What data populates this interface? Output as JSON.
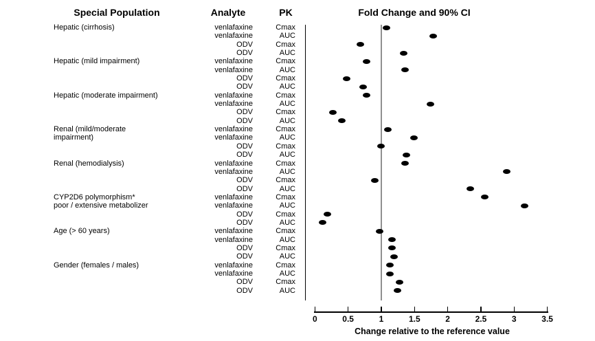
{
  "headers": {
    "special_population": "Special Population",
    "analyte": "Analyte",
    "pk": "PK"
  },
  "chart_data": {
    "type": "scatter",
    "title": "Fold Change and 90% CI",
    "xlabel": "Change relative to the reference value",
    "x_tick_labels": [
      "0",
      "0.5",
      "1",
      "1.5",
      "2",
      "2.5",
      "3",
      "3.5"
    ],
    "x_tick_values": [
      0,
      0.5,
      1,
      1.5,
      2,
      2.5,
      3,
      3.5
    ],
    "xlim": [
      -0.15,
      3.6
    ],
    "reference_line_x": 1,
    "grid": "off",
    "legend": "none",
    "colors": {
      "dot": "#000000",
      "reference_line": "#8f8f8f",
      "axis": "#000000",
      "text": "#000000"
    },
    "rows": [
      {
        "population": "Hepatic (cirrhosis)",
        "analyte": "venlafaxine",
        "pk": "Cmax",
        "fold_change": 1.08
      },
      {
        "population": "",
        "analyte": "venlafaxine",
        "pk": "AUC",
        "fold_change": 1.78
      },
      {
        "population": "",
        "analyte": "ODV",
        "pk": "Cmax",
        "fold_change": 0.68
      },
      {
        "population": "",
        "analyte": "ODV",
        "pk": "AUC",
        "fold_change": 1.34
      },
      {
        "population": "Hepatic (mild impairment)",
        "analyte": "venlafaxine",
        "pk": "Cmax",
        "fold_change": 0.78
      },
      {
        "population": "",
        "analyte": "venlafaxine",
        "pk": "AUC",
        "fold_change": 1.36
      },
      {
        "population": "",
        "analyte": "ODV",
        "pk": "Cmax",
        "fold_change": 0.48
      },
      {
        "population": "",
        "analyte": "ODV",
        "pk": "AUC",
        "fold_change": 0.73
      },
      {
        "population": "Hepatic (moderate impairment)",
        "analyte": "venlafaxine",
        "pk": "Cmax",
        "fold_change": 0.78
      },
      {
        "population": "",
        "analyte": "venlafaxine",
        "pk": "AUC",
        "fold_change": 1.74
      },
      {
        "population": "",
        "analyte": "ODV",
        "pk": "Cmax",
        "fold_change": 0.27
      },
      {
        "population": "",
        "analyte": "ODV",
        "pk": "AUC",
        "fold_change": 0.41
      },
      {
        "population": "Renal (mild/moderate",
        "analyte": "venlafaxine",
        "pk": "Cmax",
        "fold_change": 1.1
      },
      {
        "population": "impairment)",
        "analyte": "venlafaxine",
        "pk": "AUC",
        "fold_change": 1.49
      },
      {
        "population": "",
        "analyte": "ODV",
        "pk": "Cmax",
        "fold_change": 1.0
      },
      {
        "population": "",
        "analyte": "ODV",
        "pk": "AUC",
        "fold_change": 1.38
      },
      {
        "population": "Renal (hemodialysis)",
        "analyte": "venlafaxine",
        "pk": "Cmax",
        "fold_change": 1.36
      },
      {
        "population": "",
        "analyte": "venlafaxine",
        "pk": "AUC",
        "fold_change": 2.89
      },
      {
        "population": "",
        "analyte": "ODV",
        "pk": "Cmax",
        "fold_change": 0.9
      },
      {
        "population": "",
        "analyte": "ODV",
        "pk": "AUC",
        "fold_change": 2.34
      },
      {
        "population": "CYP2D6 polymorphism*",
        "analyte": "venlafaxine",
        "pk": "Cmax",
        "fold_change": 2.56
      },
      {
        "population": "poor / extensive metabolizer",
        "analyte": "venlafaxine",
        "pk": "AUC",
        "fold_change": 3.16
      },
      {
        "population": "",
        "analyte": "ODV",
        "pk": "Cmax",
        "fold_change": 0.19
      },
      {
        "population": "",
        "analyte": "ODV",
        "pk": "AUC",
        "fold_change": 0.12
      },
      {
        "population": "Age (> 60 years)",
        "analyte": "venlafaxine",
        "pk": "Cmax",
        "fold_change": 0.97
      },
      {
        "population": "",
        "analyte": "venlafaxine",
        "pk": "AUC",
        "fold_change": 1.16
      },
      {
        "population": "",
        "analyte": "ODV",
        "pk": "Cmax",
        "fold_change": 1.16
      },
      {
        "population": "",
        "analyte": "ODV",
        "pk": "AUC",
        "fold_change": 1.19
      },
      {
        "population": "Gender (females / males)",
        "analyte": "venlafaxine",
        "pk": "Cmax",
        "fold_change": 1.13
      },
      {
        "population": "",
        "analyte": "venlafaxine",
        "pk": "AUC",
        "fold_change": 1.13
      },
      {
        "population": "",
        "analyte": "ODV",
        "pk": "Cmax",
        "fold_change": 1.27
      },
      {
        "population": "",
        "analyte": "ODV",
        "pk": "AUC",
        "fold_change": 1.24
      }
    ]
  }
}
